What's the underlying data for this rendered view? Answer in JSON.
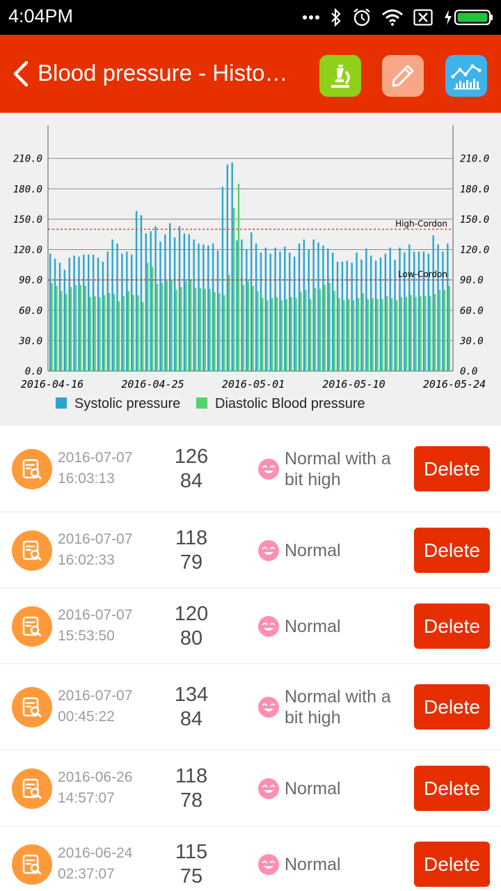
{
  "status_bar": {
    "time": "4:04PM"
  },
  "header": {
    "title": "Blood pressure - Histo…"
  },
  "chart_data": {
    "type": "bar",
    "title": "",
    "xlabel": "",
    "ylabel": "",
    "ylim": [
      0,
      240
    ],
    "y_ticks": [
      "0.0",
      "30.0",
      "60.0",
      "90.0",
      "120.0",
      "150.0",
      "180.0",
      "210.0"
    ],
    "x_tick_labels": [
      "2016-04-16",
      "2016-04-25",
      "2016-05-01",
      "2016-05-10",
      "2016-05-24"
    ],
    "x_tick_indices": [
      0,
      21,
      42,
      63,
      84
    ],
    "grid": true,
    "legend_position": "bottom",
    "reference_lines": [
      {
        "label": "High-Cordon",
        "value": 140,
        "color": "#e04040"
      },
      {
        "label": "Low-Cordon",
        "value": 90,
        "color": "#c04040"
      }
    ],
    "series": [
      {
        "name": "Systolic pressure",
        "color": "#2aa5d0",
        "values": [
          116,
          111,
          107,
          100,
          112,
          114,
          113,
          115,
          115,
          115,
          112,
          108,
          118,
          130,
          126,
          116,
          118,
          115,
          158,
          154,
          136,
          138,
          143,
          128,
          135,
          146,
          132,
          143,
          136,
          135,
          130,
          126,
          125,
          124,
          126,
          119,
          182,
          204,
          206,
          129,
          130,
          120,
          137,
          126,
          117,
          122,
          116,
          122,
          118,
          123,
          117,
          113,
          126,
          130,
          120,
          130,
          127,
          124,
          121,
          117,
          108,
          108,
          109,
          107,
          117,
          110,
          121,
          114,
          109,
          112,
          116,
          122,
          110,
          122,
          117,
          125,
          118,
          118,
          118,
          116,
          134,
          125,
          118,
          126
        ]
      },
      {
        "name": "Diastolic Blood pressure",
        "color": "#55d26e",
        "values": [
          87,
          84,
          79,
          76,
          83,
          85,
          85,
          84,
          73,
          74,
          73,
          75,
          77,
          76,
          69,
          74,
          79,
          75,
          75,
          68,
          107,
          103,
          86,
          87,
          89,
          90,
          80,
          83,
          89,
          90,
          82,
          82,
          81,
          81,
          78,
          77,
          75,
          95,
          161,
          185,
          85,
          89,
          84,
          79,
          72,
          70,
          72,
          73,
          70,
          71,
          73,
          72,
          78,
          80,
          71,
          82,
          81,
          85,
          87,
          79,
          72,
          70,
          71,
          70,
          72,
          77,
          71,
          72,
          71,
          71,
          74,
          72,
          70,
          73,
          73,
          75,
          73,
          74,
          74,
          74,
          76,
          80,
          80,
          84
        ]
      }
    ]
  },
  "records": [
    {
      "date": "2016-07-07",
      "time": "16:03:13",
      "systolic": "126",
      "diastolic": "84",
      "status": "Normal with a bit high",
      "delete_label": "Delete"
    },
    {
      "date": "2016-07-07",
      "time": "16:02:33",
      "systolic": "118",
      "diastolic": "79",
      "status": "Normal",
      "delete_label": "Delete"
    },
    {
      "date": "2016-07-07",
      "time": "15:53:50",
      "systolic": "120",
      "diastolic": "80",
      "status": "Normal",
      "delete_label": "Delete"
    },
    {
      "date": "2016-07-07",
      "time": "00:45:22",
      "systolic": "134",
      "diastolic": "84",
      "status": "Normal with a bit high",
      "delete_label": "Delete"
    },
    {
      "date": "2016-06-26",
      "time": "14:57:07",
      "systolic": "118",
      "diastolic": "78",
      "status": "Normal",
      "delete_label": "Delete"
    },
    {
      "date": "2016-06-24",
      "time": "02:37:07",
      "systolic": "115",
      "diastolic": "75",
      "status": "Normal",
      "delete_label": "Delete"
    }
  ],
  "icons": {
    "back": "back-arrow-icon",
    "microscope": "microscope-icon",
    "edit": "pencil-icon",
    "chart": "line-chart-icon",
    "record": "record-search-icon",
    "mood": "smiley-icon"
  },
  "colors": {
    "app_bar": "#e63000",
    "delete_button": "#e62e00",
    "record_icon": "#ff9a3a",
    "smiley": "#ff8fb0"
  }
}
